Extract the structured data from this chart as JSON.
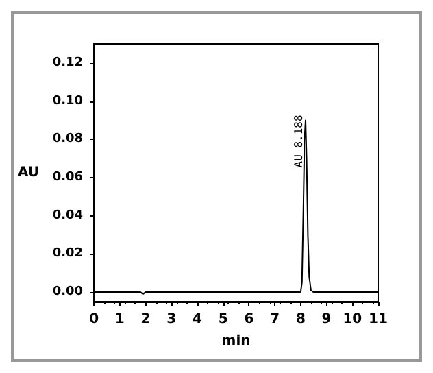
{
  "chart_data": {
    "type": "line",
    "xlabel": "min",
    "ylabel": "AU",
    "x": [
      0,
      1.8,
      1.9,
      2.0,
      8.0,
      8.05,
      8.1,
      8.15,
      8.19,
      8.23,
      8.28,
      8.33,
      8.4,
      8.5,
      11
    ],
    "series": [
      {
        "color": "#000000",
        "values": [
          0,
          0,
          -0.001,
          0,
          0,
          0.005,
          0.04,
          0.08,
          0.09,
          0.07,
          0.03,
          0.008,
          0.001,
          0,
          0
        ]
      }
    ],
    "annotations": [
      {
        "text": "AU 8.188",
        "x": 8.19,
        "y": 0.09
      }
    ],
    "xlim": [
      0,
      11
    ],
    "xticks": [
      0,
      1,
      2,
      3,
      4,
      5,
      6,
      7,
      8,
      9,
      10,
      11
    ],
    "ylim": [
      -0.005,
      0.13
    ],
    "yticks": [
      {
        "value": 0,
        "label": "0.00"
      },
      {
        "value": 0.02,
        "label": "0.02"
      },
      {
        "value": 0.04,
        "label": "0.04"
      },
      {
        "value": 0.06,
        "label": "0.06"
      },
      {
        "value": 0.08,
        "label": "0.08"
      },
      {
        "value": 0.1,
        "label": "0.10"
      },
      {
        "value": 0.12,
        "label": "0.12"
      }
    ],
    "grid": false,
    "marker": "none",
    "line_style": "solid"
  }
}
